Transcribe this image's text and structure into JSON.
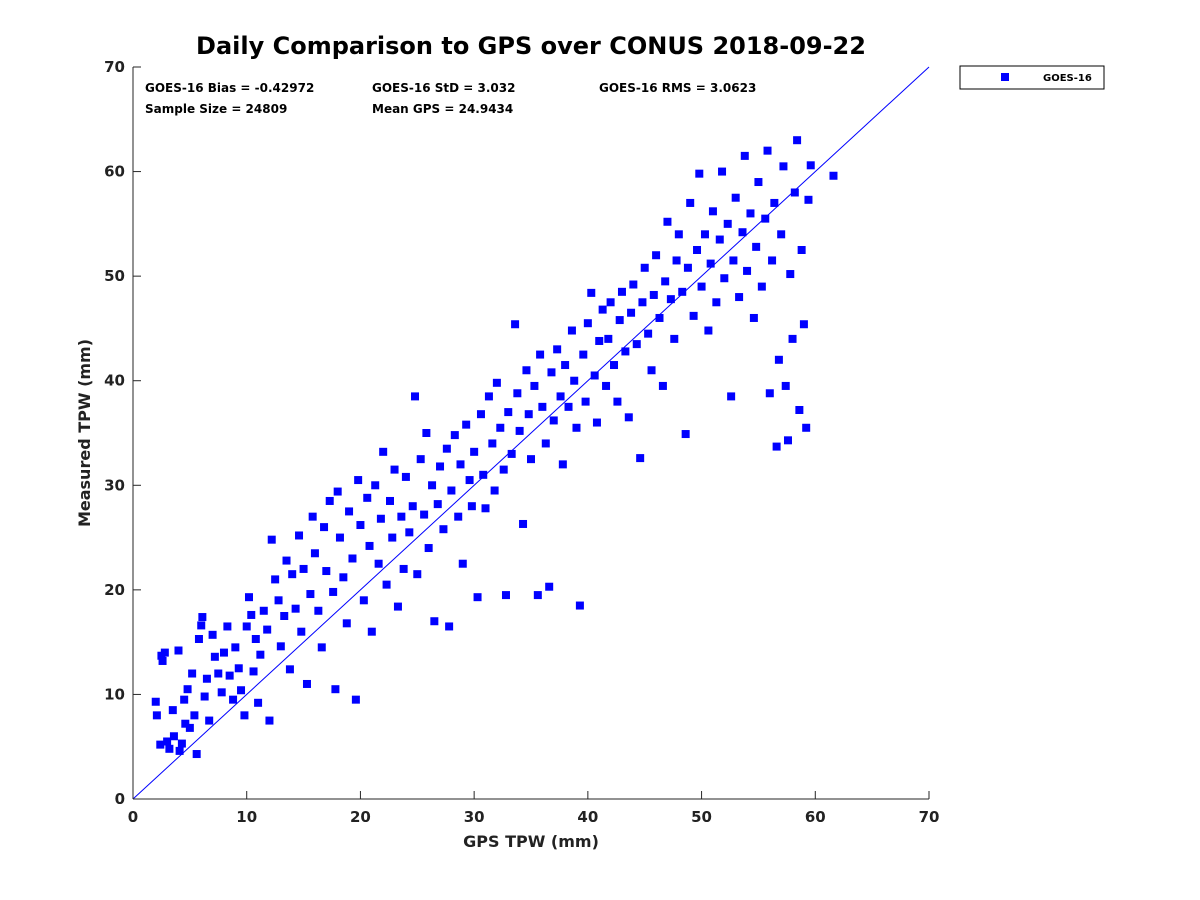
{
  "chart_data": {
    "type": "scatter",
    "title": "Daily Comparison to GPS over CONUS 2018-09-22",
    "xlabel": "GPS TPW (mm)",
    "ylabel": "Measured TPW (mm)",
    "xlim": [
      0,
      70
    ],
    "ylim": [
      0,
      70
    ],
    "xticks": [
      "0",
      "10",
      "20",
      "30",
      "40",
      "50",
      "60",
      "70"
    ],
    "yticks": [
      "0",
      "10",
      "20",
      "30",
      "40",
      "50",
      "60",
      "70"
    ],
    "grid": false,
    "legend": {
      "placement": "outside-top-right",
      "entries": [
        "GOES-16"
      ]
    },
    "reference_line": {
      "type": "one-to-one",
      "from": [
        0,
        0
      ],
      "to": [
        70,
        70
      ],
      "color": "#0000ff"
    },
    "stats": {
      "bias": "GOES-16 Bias = -0.42972",
      "std": "GOES-16 StD = 3.032",
      "rms": "GOES-16 RMS = 3.0623",
      "sample_size": "Sample Size = 24809",
      "mean_gps": "Mean GPS = 24.9434"
    },
    "series": [
      {
        "name": "GOES-16",
        "color": "#0000ff",
        "marker": "square",
        "points": [
          [
            2.0,
            9.3
          ],
          [
            2.1,
            8.0
          ],
          [
            2.4,
            5.2
          ],
          [
            2.5,
            13.7
          ],
          [
            2.6,
            13.2
          ],
          [
            2.8,
            14.0
          ],
          [
            3.0,
            5.5
          ],
          [
            3.2,
            4.8
          ],
          [
            3.5,
            8.5
          ],
          [
            3.6,
            6.0
          ],
          [
            4.0,
            14.2
          ],
          [
            4.1,
            4.6
          ],
          [
            4.3,
            5.3
          ],
          [
            4.5,
            9.5
          ],
          [
            4.6,
            7.2
          ],
          [
            4.8,
            10.5
          ],
          [
            5.0,
            6.8
          ],
          [
            5.2,
            12.0
          ],
          [
            5.4,
            8.0
          ],
          [
            5.6,
            4.3
          ],
          [
            5.8,
            15.3
          ],
          [
            6.0,
            16.6
          ],
          [
            6.1,
            17.4
          ],
          [
            6.3,
            9.8
          ],
          [
            6.5,
            11.5
          ],
          [
            6.7,
            7.5
          ],
          [
            7.0,
            15.7
          ],
          [
            7.2,
            13.6
          ],
          [
            7.5,
            12.0
          ],
          [
            7.8,
            10.2
          ],
          [
            8.0,
            14.0
          ],
          [
            8.3,
            16.5
          ],
          [
            8.5,
            11.8
          ],
          [
            8.8,
            9.5
          ],
          [
            9.0,
            14.5
          ],
          [
            9.3,
            12.5
          ],
          [
            9.5,
            10.4
          ],
          [
            9.8,
            8.0
          ],
          [
            10.0,
            16.5
          ],
          [
            10.2,
            19.3
          ],
          [
            10.4,
            17.6
          ],
          [
            10.6,
            12.2
          ],
          [
            10.8,
            15.3
          ],
          [
            11.0,
            9.2
          ],
          [
            11.2,
            13.8
          ],
          [
            11.5,
            18.0
          ],
          [
            11.8,
            16.2
          ],
          [
            12.0,
            7.5
          ],
          [
            12.2,
            24.8
          ],
          [
            12.5,
            21.0
          ],
          [
            12.8,
            19.0
          ],
          [
            13.0,
            14.6
          ],
          [
            13.3,
            17.5
          ],
          [
            13.5,
            22.8
          ],
          [
            13.8,
            12.4
          ],
          [
            14.0,
            21.5
          ],
          [
            14.3,
            18.2
          ],
          [
            14.6,
            25.2
          ],
          [
            14.8,
            16.0
          ],
          [
            15.0,
            22.0
          ],
          [
            15.3,
            11.0
          ],
          [
            15.6,
            19.6
          ],
          [
            15.8,
            27.0
          ],
          [
            16.0,
            23.5
          ],
          [
            16.3,
            18.0
          ],
          [
            16.6,
            14.5
          ],
          [
            16.8,
            26.0
          ],
          [
            17.0,
            21.8
          ],
          [
            17.3,
            28.5
          ],
          [
            17.6,
            19.8
          ],
          [
            17.8,
            10.5
          ],
          [
            18.0,
            29.4
          ],
          [
            18.2,
            25.0
          ],
          [
            18.5,
            21.2
          ],
          [
            18.8,
            16.8
          ],
          [
            19.0,
            27.5
          ],
          [
            19.3,
            23.0
          ],
          [
            19.6,
            9.5
          ],
          [
            19.8,
            30.5
          ],
          [
            20.0,
            26.2
          ],
          [
            20.3,
            19.0
          ],
          [
            20.6,
            28.8
          ],
          [
            20.8,
            24.2
          ],
          [
            21.0,
            16.0
          ],
          [
            21.3,
            30.0
          ],
          [
            21.6,
            22.5
          ],
          [
            21.8,
            26.8
          ],
          [
            22.0,
            33.2
          ],
          [
            22.3,
            20.5
          ],
          [
            22.6,
            28.5
          ],
          [
            22.8,
            25.0
          ],
          [
            23.0,
            31.5
          ],
          [
            23.3,
            18.4
          ],
          [
            23.6,
            27.0
          ],
          [
            23.8,
            22.0
          ],
          [
            24.0,
            30.8
          ],
          [
            24.3,
            25.5
          ],
          [
            24.6,
            28.0
          ],
          [
            24.8,
            38.5
          ],
          [
            25.0,
            21.5
          ],
          [
            25.3,
            32.5
          ],
          [
            25.6,
            27.2
          ],
          [
            25.8,
            35.0
          ],
          [
            26.0,
            24.0
          ],
          [
            26.3,
            30.0
          ],
          [
            26.5,
            17.0
          ],
          [
            26.8,
            28.2
          ],
          [
            27.0,
            31.8
          ],
          [
            27.3,
            25.8
          ],
          [
            27.6,
            33.5
          ],
          [
            27.8,
            16.5
          ],
          [
            28.0,
            29.5
          ],
          [
            28.3,
            34.8
          ],
          [
            28.6,
            27.0
          ],
          [
            28.8,
            32.0
          ],
          [
            29.0,
            22.5
          ],
          [
            29.3,
            35.8
          ],
          [
            29.6,
            30.5
          ],
          [
            29.8,
            28.0
          ],
          [
            30.0,
            33.2
          ],
          [
            30.3,
            19.3
          ],
          [
            30.6,
            36.8
          ],
          [
            30.8,
            31.0
          ],
          [
            31.0,
            27.8
          ],
          [
            31.3,
            38.5
          ],
          [
            31.6,
            34.0
          ],
          [
            31.8,
            29.5
          ],
          [
            32.0,
            39.8
          ],
          [
            32.3,
            35.5
          ],
          [
            32.6,
            31.5
          ],
          [
            32.8,
            19.5
          ],
          [
            33.0,
            37.0
          ],
          [
            33.3,
            33.0
          ],
          [
            33.6,
            45.4
          ],
          [
            33.8,
            38.8
          ],
          [
            34.0,
            35.2
          ],
          [
            34.3,
            26.3
          ],
          [
            34.6,
            41.0
          ],
          [
            34.8,
            36.8
          ],
          [
            35.0,
            32.5
          ],
          [
            35.3,
            39.5
          ],
          [
            35.6,
            19.5
          ],
          [
            35.8,
            42.5
          ],
          [
            36.0,
            37.5
          ],
          [
            36.3,
            34.0
          ],
          [
            36.6,
            20.3
          ],
          [
            36.8,
            40.8
          ],
          [
            37.0,
            36.2
          ],
          [
            37.3,
            43.0
          ],
          [
            37.6,
            38.5
          ],
          [
            37.8,
            32.0
          ],
          [
            38.0,
            41.5
          ],
          [
            38.3,
            37.5
          ],
          [
            38.6,
            44.8
          ],
          [
            38.8,
            40.0
          ],
          [
            39.0,
            35.5
          ],
          [
            39.3,
            18.5
          ],
          [
            39.6,
            42.5
          ],
          [
            39.8,
            38.0
          ],
          [
            40.0,
            45.5
          ],
          [
            40.3,
            48.4
          ],
          [
            40.6,
            40.5
          ],
          [
            40.8,
            36.0
          ],
          [
            41.0,
            43.8
          ],
          [
            41.3,
            46.8
          ],
          [
            41.6,
            39.5
          ],
          [
            41.8,
            44.0
          ],
          [
            42.0,
            47.5
          ],
          [
            42.3,
            41.5
          ],
          [
            42.6,
            38.0
          ],
          [
            42.8,
            45.8
          ],
          [
            43.0,
            48.5
          ],
          [
            43.3,
            42.8
          ],
          [
            43.6,
            36.5
          ],
          [
            43.8,
            46.5
          ],
          [
            44.0,
            49.2
          ],
          [
            44.3,
            43.5
          ],
          [
            44.6,
            32.6
          ],
          [
            44.8,
            47.5
          ],
          [
            45.0,
            50.8
          ],
          [
            45.3,
            44.5
          ],
          [
            45.6,
            41.0
          ],
          [
            45.8,
            48.2
          ],
          [
            46.0,
            52.0
          ],
          [
            46.3,
            46.0
          ],
          [
            46.6,
            39.5
          ],
          [
            46.8,
            49.5
          ],
          [
            47.0,
            55.2
          ],
          [
            47.3,
            47.8
          ],
          [
            47.6,
            44.0
          ],
          [
            47.8,
            51.5
          ],
          [
            48.0,
            54.0
          ],
          [
            48.3,
            48.5
          ],
          [
            48.6,
            34.9
          ],
          [
            48.8,
            50.8
          ],
          [
            49.0,
            57.0
          ],
          [
            49.3,
            46.2
          ],
          [
            49.6,
            52.5
          ],
          [
            49.8,
            59.8
          ],
          [
            50.0,
            49.0
          ],
          [
            50.3,
            54.0
          ],
          [
            50.6,
            44.8
          ],
          [
            50.8,
            51.2
          ],
          [
            51.0,
            56.2
          ],
          [
            51.3,
            47.5
          ],
          [
            51.6,
            53.5
          ],
          [
            51.8,
            60.0
          ],
          [
            52.0,
            49.8
          ],
          [
            52.3,
            55.0
          ],
          [
            52.6,
            38.5
          ],
          [
            52.8,
            51.5
          ],
          [
            53.0,
            57.5
          ],
          [
            53.3,
            48.0
          ],
          [
            53.6,
            54.2
          ],
          [
            53.8,
            61.5
          ],
          [
            54.0,
            50.5
          ],
          [
            54.3,
            56.0
          ],
          [
            54.6,
            46.0
          ],
          [
            54.8,
            52.8
          ],
          [
            55.0,
            59.0
          ],
          [
            55.3,
            49.0
          ],
          [
            55.6,
            55.5
          ],
          [
            55.8,
            62.0
          ],
          [
            56.0,
            38.8
          ],
          [
            56.2,
            51.5
          ],
          [
            56.4,
            57.0
          ],
          [
            56.6,
            33.7
          ],
          [
            56.8,
            42.0
          ],
          [
            57.0,
            54.0
          ],
          [
            57.2,
            60.5
          ],
          [
            57.4,
            39.5
          ],
          [
            57.6,
            34.3
          ],
          [
            57.8,
            50.2
          ],
          [
            58.0,
            44.0
          ],
          [
            58.2,
            58.0
          ],
          [
            58.4,
            63.0
          ],
          [
            58.6,
            37.2
          ],
          [
            58.8,
            52.5
          ],
          [
            59.0,
            45.4
          ],
          [
            59.2,
            35.5
          ],
          [
            59.4,
            57.3
          ],
          [
            59.6,
            60.6
          ],
          [
            61.6,
            59.6
          ]
        ]
      }
    ]
  }
}
